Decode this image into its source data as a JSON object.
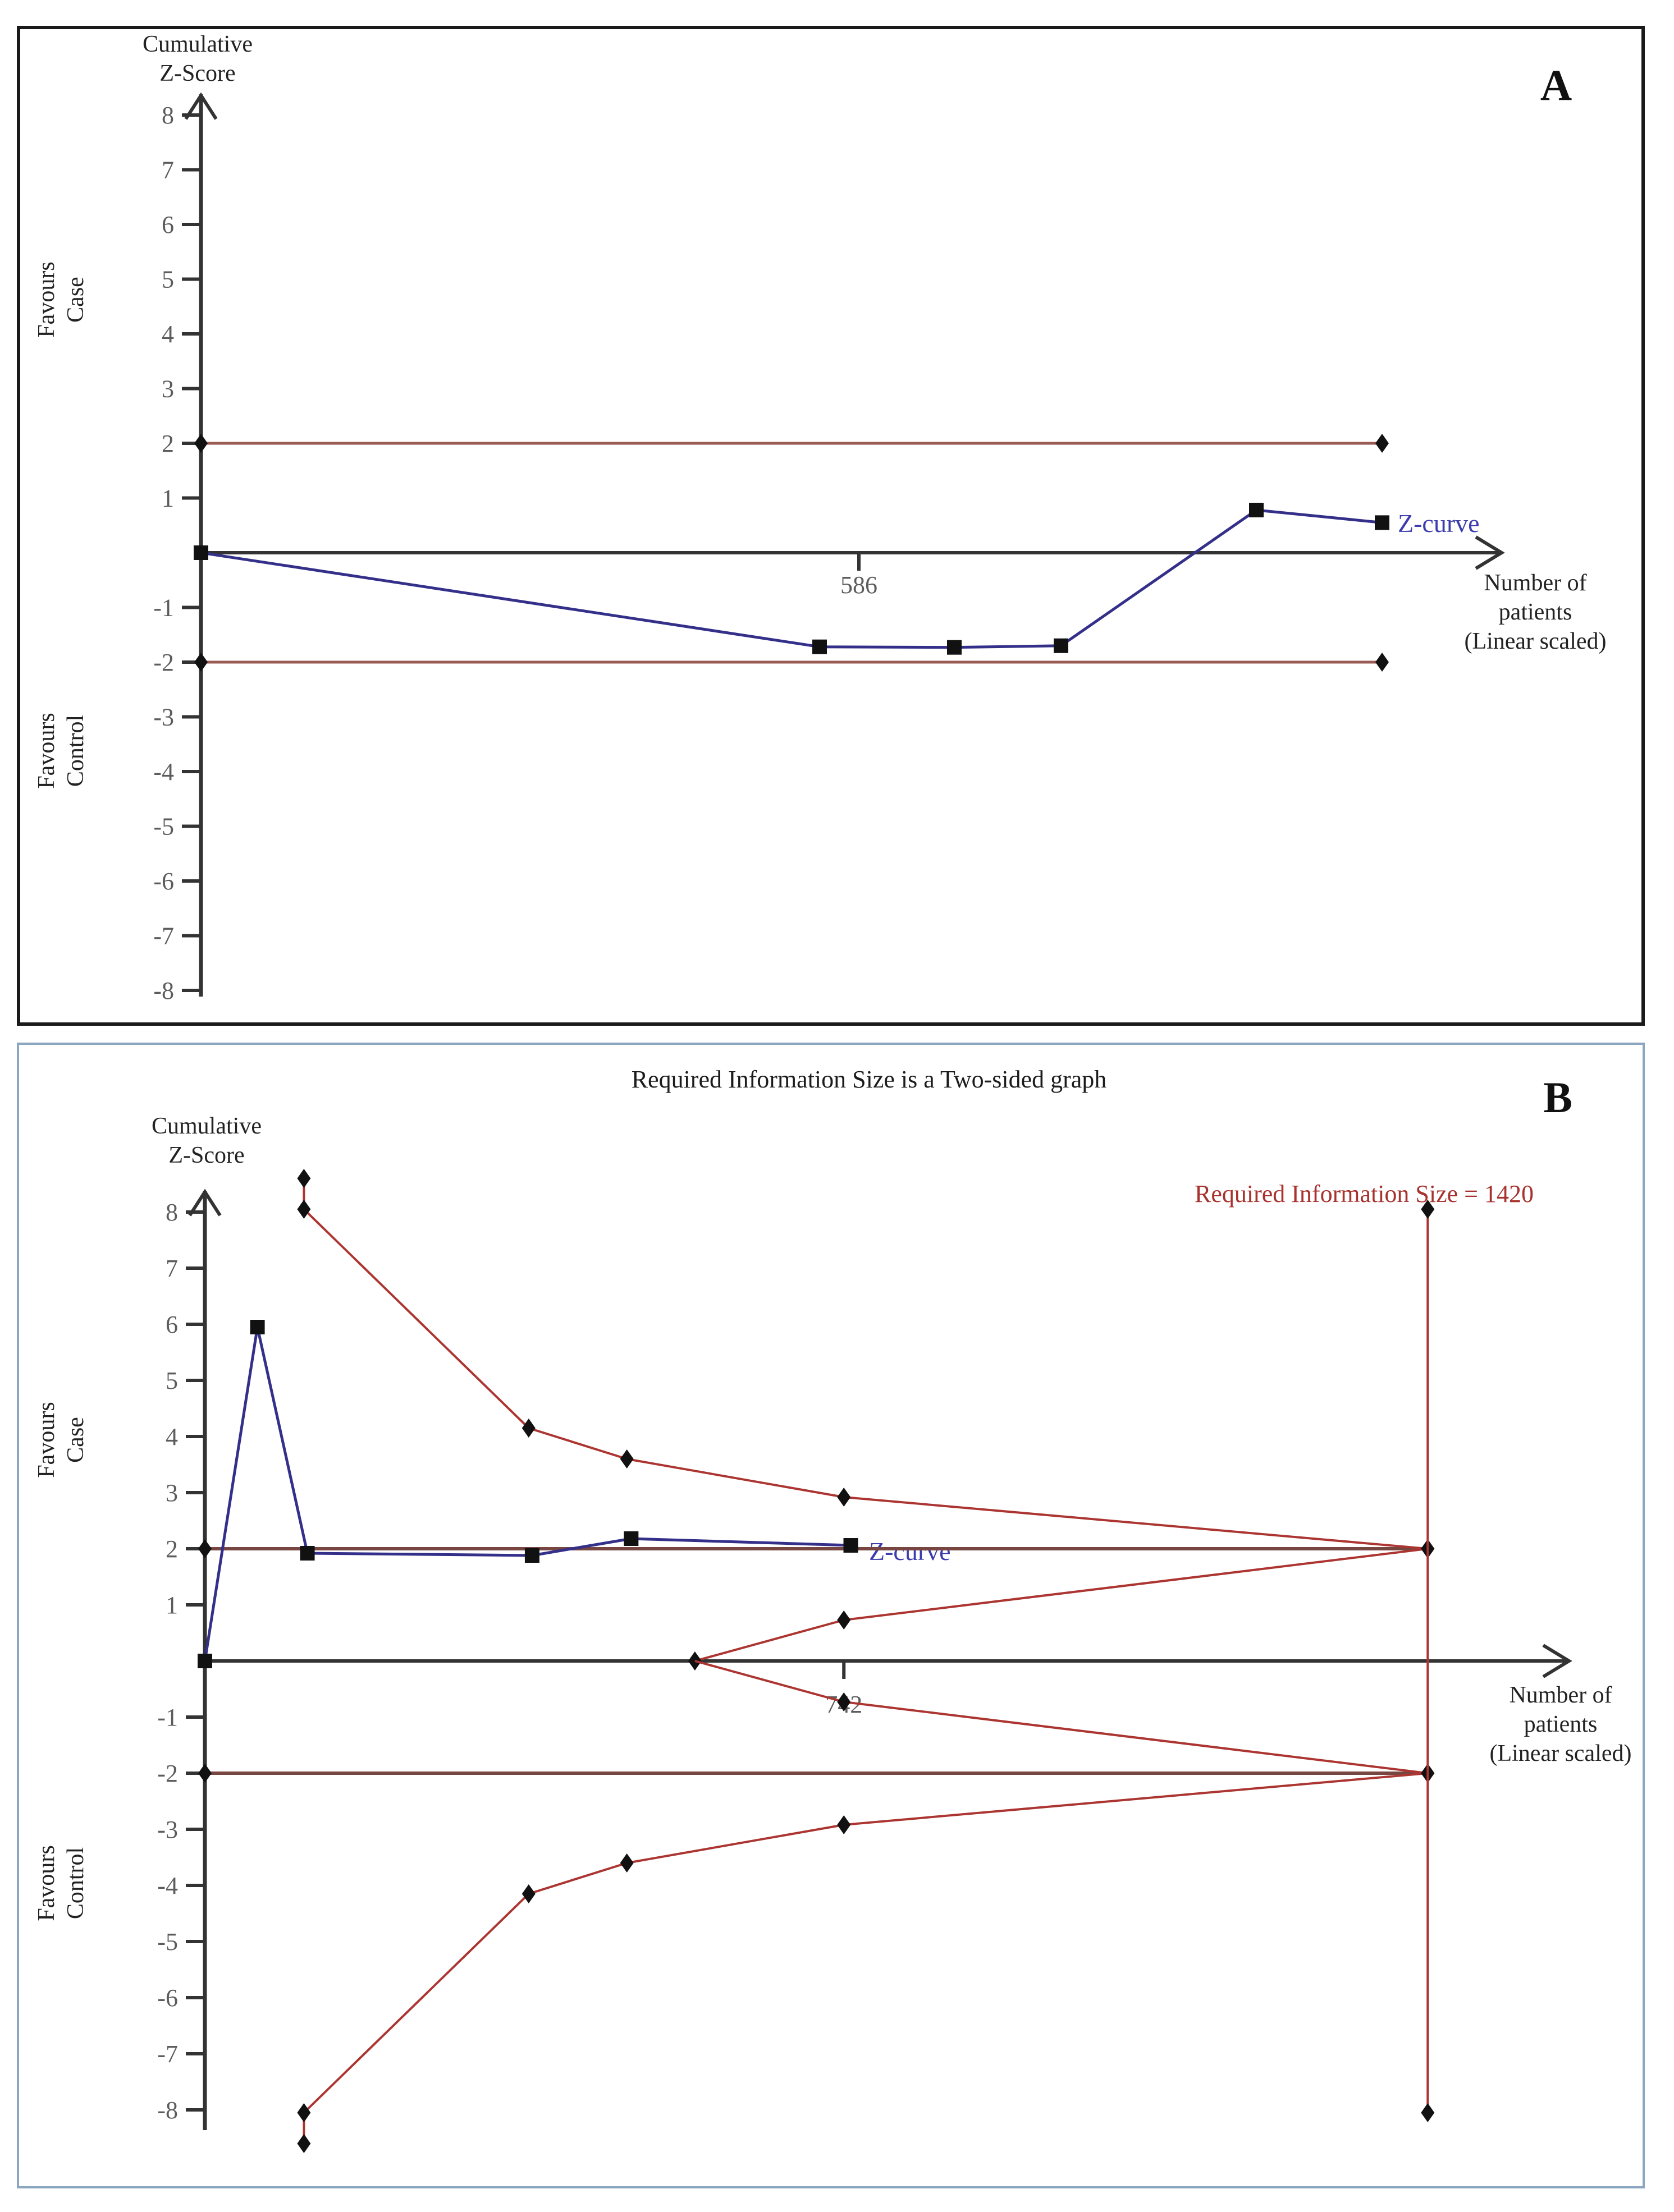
{
  "figure": {
    "panel_a": {
      "letter": "A",
      "y_axis_label": [
        "Cumulative",
        "Z-Score"
      ],
      "favours_top": [
        "Favours",
        "Case"
      ],
      "favours_bottom": [
        "Favours",
        "Control"
      ],
      "z_curve_label": "Z-curve",
      "x_axis_label": [
        "Number of",
        "patients",
        "(Linear scaled)"
      ]
    },
    "panel_b": {
      "letter": "B",
      "title": "Required Information Size is a Two-sided graph",
      "ris_label": "Required Information Size = 1420",
      "y_axis_label": [
        "Cumulative",
        "Z-Score"
      ],
      "favours_top": [
        "Favours",
        "Case"
      ],
      "favours_bottom": [
        "Favours",
        "Control"
      ],
      "z_curve_label": "Z-curve",
      "x_axis_label": [
        "Number of",
        "patients",
        "(Linear scaled)"
      ]
    },
    "colors": {
      "z_curve": "#34308a",
      "z_curve_label": "#3c3cae",
      "conventional_boundary_a": "#9a5b55",
      "conventional_boundary_b": "#774640",
      "monitoring_boundary": "#ac3531",
      "ris_text": "#a8322e",
      "axis": "#333333",
      "marker": "#111111",
      "panel_a_border": "#1a1a1a",
      "panel_b_border": "#8aa6c1"
    }
  },
  "chart_data": [
    {
      "type": "line",
      "panel": "A",
      "title": "",
      "xlabel": "Number of patients (Linear scaled)",
      "ylabel": "Cumulative Z-Score",
      "ylim": [
        -8.6,
        8.6
      ],
      "xlim": [
        0,
        1160
      ],
      "grid": false,
      "y_ticks": [
        {
          "v": 8,
          "l": "8"
        },
        {
          "v": 7,
          "l": "7"
        },
        {
          "v": 6,
          "l": "6"
        },
        {
          "v": 5,
          "l": "5"
        },
        {
          "v": 4,
          "l": "4"
        },
        {
          "v": 3,
          "l": "3"
        },
        {
          "v": 2,
          "l": "2"
        },
        {
          "v": 1,
          "l": "1"
        },
        {
          "v": -1,
          "l": "-1"
        },
        {
          "v": -2,
          "l": "-2"
        },
        {
          "v": -3,
          "l": "-3"
        },
        {
          "v": -4,
          "l": "-4"
        },
        {
          "v": -5,
          "l": "-5"
        },
        {
          "v": -6,
          "l": "-6"
        },
        {
          "v": -7,
          "l": "-7"
        },
        {
          "v": -8,
          "l": "-8"
        }
      ],
      "x_ticks": [
        {
          "v": 586,
          "l": "586"
        }
      ],
      "series": [
        {
          "name": "conventional-boundary-upper",
          "color": "#9a5b55",
          "width": 5,
          "marker": "diamond",
          "points": [
            [
              0,
              2
            ],
            [
              1052,
              2
            ]
          ],
          "marker_points": [
            [
              0,
              2
            ],
            [
              1052,
              2
            ]
          ]
        },
        {
          "name": "conventional-boundary-lower",
          "color": "#9a5b55",
          "width": 5,
          "marker": "diamond",
          "points": [
            [
              0,
              -2
            ],
            [
              1052,
              -2
            ]
          ],
          "marker_points": [
            [
              0,
              -2
            ],
            [
              1052,
              -2
            ]
          ]
        },
        {
          "name": "z-curve",
          "color": "#34308a",
          "width": 5,
          "marker": "square",
          "points": [
            [
              0,
              0
            ],
            [
              551,
              -1.72
            ],
            [
              671,
              -1.73
            ],
            [
              766,
              -1.7
            ],
            [
              940,
              0.78
            ],
            [
              1052,
              0.55
            ]
          ],
          "marker_points": [
            [
              0,
              0
            ],
            [
              551,
              -1.72
            ],
            [
              671,
              -1.73
            ],
            [
              766,
              -1.7
            ],
            [
              940,
              0.78
            ],
            [
              1052,
              0.55
            ]
          ]
        }
      ]
    },
    {
      "type": "line",
      "panel": "B",
      "title": "Required Information Size is a Two-sided graph",
      "xlabel": "Number of patients (Linear scaled)",
      "ylabel": "Cumulative Z-Score",
      "required_information_size": 1420,
      "ylim": [
        -8.6,
        8.6
      ],
      "xlim": [
        0,
        1580
      ],
      "grid": false,
      "y_ticks": [
        {
          "v": 8,
          "l": "8"
        },
        {
          "v": 7,
          "l": "7"
        },
        {
          "v": 6,
          "l": "6"
        },
        {
          "v": 5,
          "l": "5"
        },
        {
          "v": 4,
          "l": "4"
        },
        {
          "v": 3,
          "l": "3"
        },
        {
          "v": 2,
          "l": "2"
        },
        {
          "v": 1,
          "l": "1"
        },
        {
          "v": -1,
          "l": "-1"
        },
        {
          "v": -2,
          "l": "-2"
        },
        {
          "v": -3,
          "l": "-3"
        },
        {
          "v": -4,
          "l": "-4"
        },
        {
          "v": -5,
          "l": "-5"
        },
        {
          "v": -6,
          "l": "-6"
        },
        {
          "v": -7,
          "l": "-7"
        },
        {
          "v": -8,
          "l": "-8"
        }
      ],
      "x_ticks": [
        {
          "v": 742,
          "l": "742"
        }
      ],
      "series": [
        {
          "name": "conventional-boundary-upper",
          "color": "#774640",
          "width": 6,
          "marker": "diamond",
          "points": [
            [
              0,
              2
            ],
            [
              1420,
              2
            ]
          ],
          "marker_points": [
            [
              0,
              2
            ],
            [
              1420,
              2
            ]
          ]
        },
        {
          "name": "conventional-boundary-lower",
          "color": "#774640",
          "width": 6,
          "marker": "diamond",
          "points": [
            [
              0,
              -2
            ],
            [
              1420,
              -2
            ]
          ],
          "marker_points": [
            [
              0,
              -2
            ],
            [
              1420,
              -2
            ]
          ]
        },
        {
          "name": "alpha-spending-boundary-upper",
          "color": "#ac3531",
          "width": 4,
          "marker": "diamond",
          "points": [
            [
              115,
              8.6
            ],
            [
              115,
              8.05
            ],
            [
              376,
              4.15
            ],
            [
              490,
              3.6
            ],
            [
              742,
              2.92
            ],
            [
              1420,
              2
            ]
          ],
          "marker_points": [
            [
              115,
              8.6
            ],
            [
              115,
              8.05
            ],
            [
              376,
              4.15
            ],
            [
              490,
              3.6
            ],
            [
              742,
              2.92
            ],
            [
              1420,
              2
            ]
          ]
        },
        {
          "name": "alpha-spending-boundary-lower",
          "color": "#ac3531",
          "width": 4,
          "marker": "diamond",
          "points": [
            [
              115,
              -8.6
            ],
            [
              115,
              -8.05
            ],
            [
              376,
              -4.15
            ],
            [
              490,
              -3.6
            ],
            [
              742,
              -2.92
            ],
            [
              1420,
              -2
            ]
          ],
          "marker_points": [
            [
              115,
              -8.6
            ],
            [
              115,
              -8.05
            ],
            [
              376,
              -4.15
            ],
            [
              490,
              -3.6
            ],
            [
              742,
              -2.92
            ],
            [
              1420,
              -2
            ]
          ]
        },
        {
          "name": "futility-boundary-upper",
          "color": "#ac3531",
          "width": 4,
          "marker": "diamond",
          "points": [
            [
              569,
              0
            ],
            [
              742,
              0.73
            ],
            [
              1420,
              2
            ]
          ],
          "marker_points": [
            [
              569,
              0
            ],
            [
              742,
              0.73
            ],
            [
              1420,
              2
            ]
          ]
        },
        {
          "name": "futility-boundary-lower",
          "color": "#ac3531",
          "width": 4,
          "marker": "diamond",
          "points": [
            [
              569,
              0
            ],
            [
              742,
              -0.73
            ],
            [
              1420,
              -2
            ]
          ],
          "marker_points": [
            [
              742,
              -0.73
            ],
            [
              1420,
              -2
            ]
          ]
        },
        {
          "name": "required-information-size-line",
          "color": "#ac3531",
          "width": 4,
          "marker": "diamond",
          "points": [
            [
              1420,
              8.05
            ],
            [
              1420,
              -8.05
            ]
          ],
          "marker_points": [
            [
              1420,
              8.05
            ],
            [
              1420,
              -8.05
            ]
          ]
        },
        {
          "name": "z-curve",
          "color": "#34308a",
          "width": 5,
          "marker": "square",
          "points": [
            [
              0,
              0
            ],
            [
              61,
              5.95
            ],
            [
              119,
              1.92
            ],
            [
              380,
              1.88
            ],
            [
              495,
              2.18
            ],
            [
              750,
              2.06
            ]
          ],
          "marker_points": [
            [
              0,
              0
            ],
            [
              61,
              5.95
            ],
            [
              119,
              1.92
            ],
            [
              380,
              1.88
            ],
            [
              495,
              2.18
            ],
            [
              750,
              2.06
            ]
          ]
        }
      ]
    }
  ]
}
